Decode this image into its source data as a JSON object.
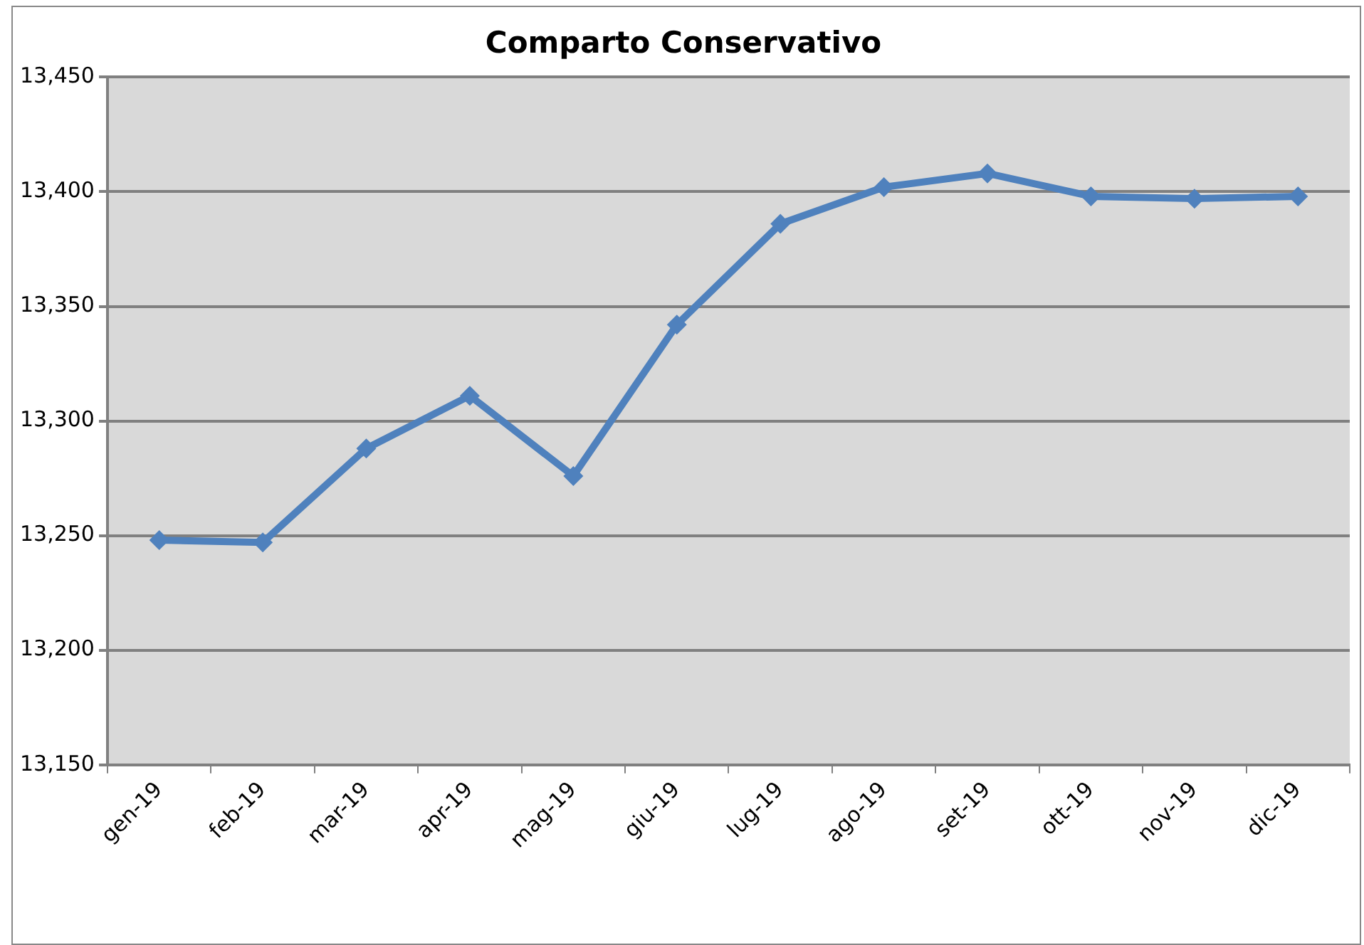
{
  "chart_data": {
    "type": "line",
    "title": "Comparto Conservativo",
    "categories": [
      "gen-19",
      "feb-19",
      "mar-19",
      "apr-19",
      "mag-19",
      "giu-19",
      "lug-19",
      "ago-19",
      "set-19",
      "ott-19",
      "nov-19",
      "dic-19"
    ],
    "series": [
      {
        "color": "#4f81bd",
        "values": [
          13248,
          13247,
          13288,
          13311,
          13276,
          13342,
          13386,
          13402,
          13408,
          13398,
          13397,
          13398
        ]
      }
    ],
    "ylim": [
      13150,
      13450
    ],
    "yticks": [
      {
        "value": 13150,
        "label": "13,150"
      },
      {
        "value": 13200,
        "label": "13,200"
      },
      {
        "value": 13250,
        "label": "13,250"
      },
      {
        "value": 13300,
        "label": "13,300"
      },
      {
        "value": 13350,
        "label": "13,350"
      },
      {
        "value": 13400,
        "label": "13,400"
      },
      {
        "value": 13450,
        "label": "13,450"
      }
    ],
    "grid": "y",
    "legend": false,
    "marker": "diamond",
    "line_style": "solid"
  }
}
